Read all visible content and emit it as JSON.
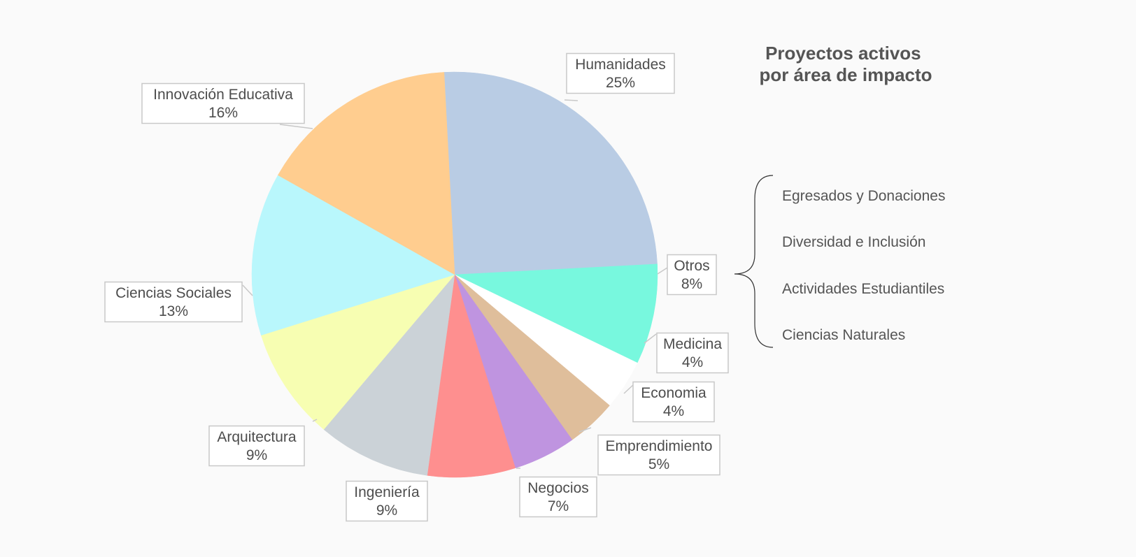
{
  "chart_data": {
    "type": "pie",
    "title_lines": [
      "Proyectos activos",
      "por área de impacto"
    ],
    "slices": [
      {
        "name": "Humanidades",
        "label": "25%",
        "value": 25,
        "color": "#b9cce4"
      },
      {
        "name": "Otros",
        "label": "8%",
        "value": 8,
        "color": "#78f8de"
      },
      {
        "name": "Medicina",
        "label": "4%",
        "value": 4,
        "color": "#ffffff"
      },
      {
        "name": "Economia",
        "label": "4%",
        "value": 4,
        "color": "#dfbe9b"
      },
      {
        "name": "Emprendimiento",
        "label": "5%",
        "value": 5,
        "color": "#bf94e0"
      },
      {
        "name": "Negocios",
        "label": "7%",
        "value": 7,
        "color": "#fe8f8f"
      },
      {
        "name": "Ingeniería",
        "label": "9%",
        "value": 9,
        "color": "#cbd2d7"
      },
      {
        "name": "Arquitectura",
        "label": "9%",
        "value": 9,
        "color": "#f7feb2"
      },
      {
        "name": "Ciencias Sociales",
        "label": "13%",
        "value": 13,
        "color": "#b9f7fc"
      },
      {
        "name": "Innovación Educativa",
        "label": "16%",
        "value": 16,
        "color": "#ffcd8f"
      }
    ],
    "otros_breakdown": [
      "Egresados y Donaciones",
      "Diversidad e Inclusión",
      "Actividades Estudiantiles",
      "Ciencias Naturales"
    ]
  }
}
